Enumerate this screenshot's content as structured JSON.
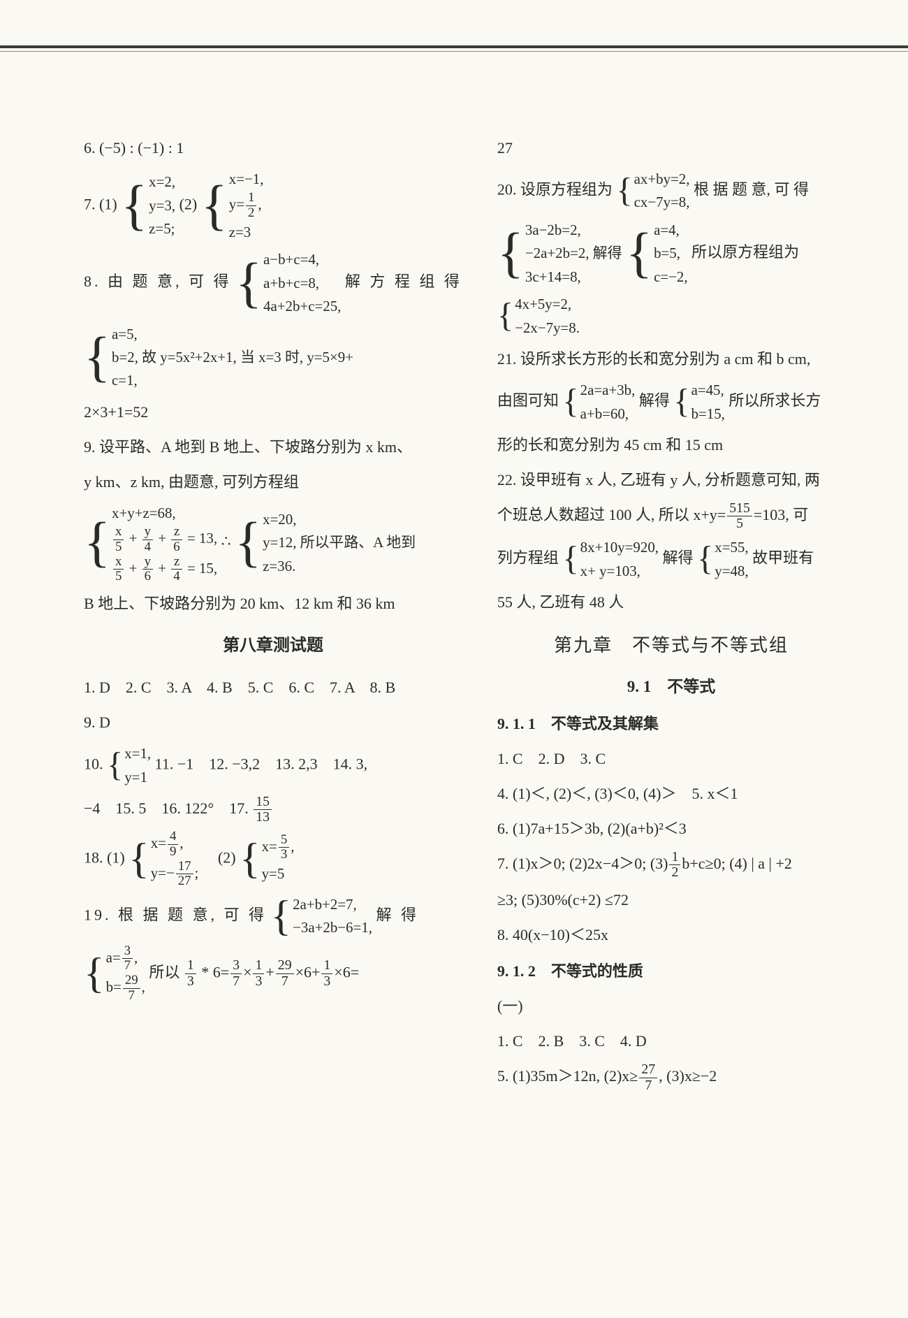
{
  "left": {
    "l6": "6. (−5) : (−1) : 1",
    "l7_pre": "7. (1)",
    "l7_b1_1": "x=2,",
    "l7_b1_2": "y=3,",
    "l7_b1_3": "z=5;",
    "l7_mid": "(2)",
    "l7_b2_1": "x=−1,",
    "l7_b2_2_pre": "y=",
    "l7_b2_2_num": "1",
    "l7_b2_2_den": "2",
    "l7_b2_2_post": ",",
    "l7_b2_3": "z=3",
    "l8_pre": "8. 由 题 意, 可 得",
    "l8_1": "a−b+c=4,",
    "l8_2": "a+b+c=8,",
    "l8_3": "4a+2b+c=25,",
    "l8_post": "解 方 程 组 得",
    "l8b_1": "a=5,",
    "l8b_2": "b=2, 故 y=5x²+2x+1, 当 x=3 时, y=5×9+",
    "l8b_3": "c=1,",
    "l8c": "2×3+1=52",
    "l9a": "9. 设平路、A 地到 B 地上、下坡路分别为 x km、",
    "l9b": "y km、z km, 由题意, 可列方程组",
    "l9_sys1": "x+y+z=68,",
    "l9_sys2_a_num": "x",
    "l9_sys2_a_den": "5",
    "l9_sys2_b_num": "y",
    "l9_sys2_b_den": "4",
    "l9_sys2_c_num": "z",
    "l9_sys2_c_den": "6",
    "l9_sys2_post": "= 13,",
    "l9_sys3_a_num": "x",
    "l9_sys3_a_den": "5",
    "l9_sys3_b_num": "y",
    "l9_sys3_b_den": "6",
    "l9_sys3_c_num": "z",
    "l9_sys3_c_den": "4",
    "l9_sys3_post": "= 15,",
    "l9_sol_pre": "∴",
    "l9_sol_1": "x=20,",
    "l9_sol_2": "y=12, 所以平路、A 地到",
    "l9_sol_3": "z=36.",
    "l9c": "B 地上、下坡路分别为 20 km、12 km 和 36 km",
    "ch8_title": "第八章测试题",
    "t1": "1. D　2. C　3. A　4. B　5. C　6. C　7. A　8. B",
    "t9": "9. D",
    "t10_pre": "10.",
    "t10_1": "x=1,",
    "t10_2": "y=1",
    "t10_rest": "11. −1　12. −3,2　13. 2,3　14. 3,",
    "t15": "−4　15. 5　16. 122°　17.",
    "t17_num": "15",
    "t17_den": "13",
    "t18_pre": "18. (1)",
    "t18_1_1_pre": "x=",
    "t18_1_1_num": "4",
    "t18_1_1_den": "9",
    "t18_1_1_post": ",",
    "t18_1_2_pre": "y=−",
    "t18_1_2_num": "17",
    "t18_1_2_den": "27",
    "t18_1_2_post": ";",
    "t18_mid": "(2)",
    "t18_2_1_pre": "x=",
    "t18_2_1_num": "5",
    "t18_2_1_den": "3",
    "t18_2_1_post": ",",
    "t18_2_2": "y=5",
    "t19_pre": "19. 根 据 题 意, 可 得",
    "t19_1": "2a+b+2=7,",
    "t19_2": "−3a+2b−6=1,",
    "t19_post": "解 得",
    "t19b_1_pre": "a=",
    "t19b_1_num": "3",
    "t19b_1_den": "7",
    "t19b_1_post": ",",
    "t19b_2_pre": "b=",
    "t19b_2_num": "29",
    "t19b_2_den": "7",
    "t19b_2_post": ",",
    "t19b_mid_a": "所以 ",
    "t19b_mid_num1": "1",
    "t19b_mid_den1": "3",
    "t19b_mid_b": " * 6=",
    "t19b_mid_num2": "3",
    "t19b_mid_den2": "7",
    "t19b_mid_c": "×",
    "t19b_mid_num3": "1",
    "t19b_mid_den3": "3",
    "t19b_mid_d": "+",
    "t19b_mid_num4": "29",
    "t19b_mid_den4": "7",
    "t19b_mid_e": "×6+",
    "t19b_mid_num5": "1",
    "t19b_mid_den5": "3",
    "t19b_mid_f": "×6="
  },
  "right": {
    "r27": "27",
    "r20_pre": "20. 设原方程组为",
    "r20_1": "ax+by=2,",
    "r20_2": "cx−7y=8,",
    "r20_post": "根 据 题 意, 可 得",
    "r20b_1": "3a−2b=2,",
    "r20b_2": "−2a+2b=2, 解得",
    "r20b_3": "3c+14=8,",
    "r20c_1": "a=4,",
    "r20c_2": "b=5,",
    "r20c_3": "c=−2,",
    "r20c_post": "所以原方程组为",
    "r20d_1": "4x+5y=2,",
    "r20d_2": "−2x−7y=8.",
    "r21a": "21. 设所求长方形的长和宽分别为 a cm 和 b cm,",
    "r21b_pre": "由图可知",
    "r21b_1": "2a=a+3b,",
    "r21b_2": "a+b=60,",
    "r21b_mid": "解得",
    "r21c_1": "a=45,",
    "r21c_2": "b=15,",
    "r21c_post": "所以所求长方",
    "r21d": "形的长和宽分别为 45 cm 和 15 cm",
    "r22a": "22. 设甲班有 x 人, 乙班有 y 人, 分析题意可知, 两",
    "r22b_pre": "个班总人数超过 100 人, 所以 x+y=",
    "r22b_num": "515",
    "r22b_den": "5",
    "r22b_post": "=103, 可",
    "r22c_pre": "列方程组",
    "r22c_1": "8x+10y=920,",
    "r22c_2": "x+ y=103,",
    "r22c_mid": "解得",
    "r22d_1": "x=55,",
    "r22d_2": "y=48,",
    "r22d_post": "故甲班有",
    "r22e": "55 人, 乙班有 48 人",
    "ch9_title": "第九章　不等式与不等式组",
    "s91_title": "9. 1　不等式",
    "s911_title": "9. 1. 1　不等式及其解集",
    "s911_1": "1. C　2. D　3. C",
    "s911_4": "4.  (1)＜, (2)＜, (3)＜0, (4)＞　5. x＜1",
    "s911_6": "6. (1)7a+15＞3b, (2)(a+b)²＜3",
    "s911_7": "7. (1)x＞0; (2)2x−4＞0; (3)",
    "s911_7_num": "1",
    "s911_7_den": "2",
    "s911_7b": "b+c≥0; (4) | a | +2",
    "s911_7c": "≥3; (5)30%(c+2) ≤72",
    "s911_8": "8. 40(x−10)＜25x",
    "s912_title": "9. 1. 2　不等式的性质",
    "s912_a": "(一)",
    "s912_1": "1. C　2. B　3. C　4. D",
    "s912_5_pre": "5.  (1)35m＞12n, (2)x≥",
    "s912_5_num": "27",
    "s912_5_den": "7",
    "s912_5_post": ", (3)x≥−2"
  }
}
